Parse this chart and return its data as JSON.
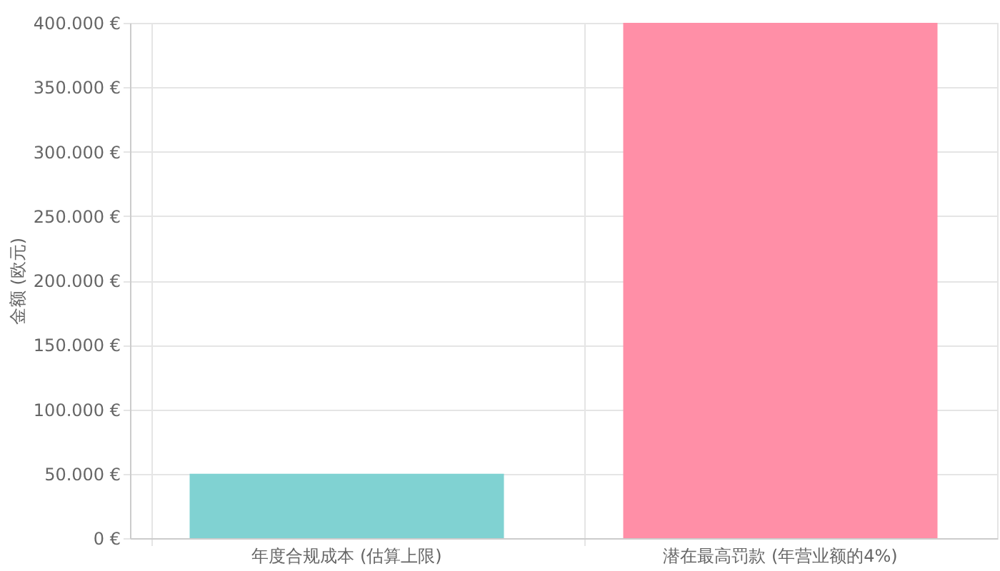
{
  "chart_data": {
    "type": "bar",
    "ylabel": "金额 (欧元)",
    "categories": [
      "年度合规成本 (估算上限)",
      "潜在最高罚款 (年营业额的4%)"
    ],
    "values": [
      50000,
      400000
    ],
    "colors": [
      "#80d2d2",
      "#ff8fa7"
    ],
    "ylim": [
      0,
      400000
    ],
    "yticks": [
      {
        "value": 0,
        "label": "0 €"
      },
      {
        "value": 50000,
        "label": "50.000 €"
      },
      {
        "value": 100000,
        "label": "100.000 €"
      },
      {
        "value": 150000,
        "label": "150.000 €"
      },
      {
        "value": 200000,
        "label": "200.000 €"
      },
      {
        "value": 250000,
        "label": "250.000 €"
      },
      {
        "value": 300000,
        "label": "300.000 €"
      },
      {
        "value": 350000,
        "label": "350.000 €"
      },
      {
        "value": 400000,
        "label": "400.000 €"
      }
    ],
    "grid": true
  }
}
